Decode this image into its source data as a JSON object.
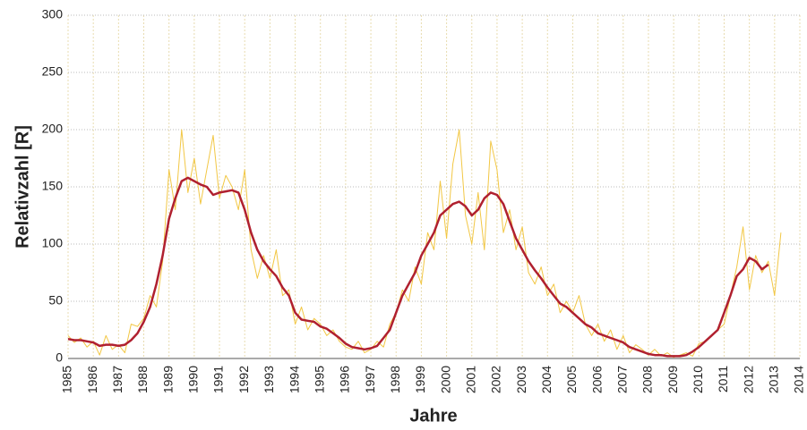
{
  "chart_data": {
    "type": "line",
    "y_label": "Relativzahl [R]",
    "x_label": "Jahre",
    "x": [
      1985,
      1985.25,
      1985.5,
      1985.75,
      1986,
      1986.25,
      1986.5,
      1986.75,
      1987,
      1987.25,
      1987.5,
      1987.75,
      1988,
      1988.25,
      1988.5,
      1988.75,
      1989,
      1989.25,
      1989.5,
      1989.75,
      1990,
      1990.25,
      1990.5,
      1990.75,
      1991,
      1991.25,
      1991.5,
      1991.75,
      1992,
      1992.25,
      1992.5,
      1992.75,
      1993,
      1993.25,
      1993.5,
      1993.75,
      1994,
      1994.25,
      1994.5,
      1994.75,
      1995,
      1995.25,
      1995.5,
      1995.75,
      1996,
      1996.25,
      1996.5,
      1996.75,
      1997,
      1997.25,
      1997.5,
      1997.75,
      1998,
      1998.25,
      1998.5,
      1998.75,
      1999,
      1999.25,
      1999.5,
      1999.75,
      2000,
      2000.25,
      2000.5,
      2000.75,
      2001,
      2001.25,
      2001.5,
      2001.75,
      2002,
      2002.25,
      2002.5,
      2002.75,
      2003,
      2003.25,
      2003.5,
      2003.75,
      2004,
      2004.25,
      2004.5,
      2004.75,
      2005,
      2005.25,
      2005.5,
      2005.75,
      2006,
      2006.25,
      2006.5,
      2006.75,
      2007,
      2007.25,
      2007.5,
      2007.75,
      2008,
      2008.25,
      2008.5,
      2008.75,
      2009,
      2009.25,
      2009.5,
      2009.75,
      2010,
      2010.25,
      2010.5,
      2010.75,
      2011,
      2011.25,
      2011.5,
      2011.75,
      2012,
      2012.25,
      2012.5,
      2012.75,
      2013,
      2013.25
    ],
    "series": [
      {
        "color": "#f2c744",
        "width": 1,
        "values": [
          20,
          14,
          18,
          10,
          15,
          3,
          20,
          8,
          12,
          5,
          30,
          28,
          35,
          55,
          45,
          85,
          165,
          130,
          200,
          145,
          175,
          135,
          165,
          195,
          140,
          160,
          150,
          130,
          165,
          95,
          70,
          90,
          70,
          95,
          55,
          60,
          30,
          45,
          25,
          35,
          30,
          20,
          25,
          15,
          10,
          8,
          15,
          5,
          8,
          15,
          10,
          30,
          40,
          60,
          50,
          80,
          65,
          110,
          95,
          155,
          105,
          170,
          200,
          125,
          100,
          145,
          95,
          190,
          165,
          110,
          130,
          95,
          115,
          75,
          65,
          80,
          55,
          65,
          40,
          50,
          40,
          55,
          30,
          20,
          30,
          15,
          25,
          8,
          20,
          5,
          12,
          8,
          3,
          8,
          2,
          5,
          1,
          3,
          5,
          2,
          13,
          15,
          20,
          25,
          30,
          55,
          80,
          115,
          60,
          90,
          75,
          85,
          55,
          110
        ]
      },
      {
        "color": "#b0202f",
        "width": 2.5,
        "values": [
          17,
          16,
          16,
          15,
          14,
          11,
          12,
          12,
          11,
          12,
          16,
          22,
          32,
          45,
          65,
          90,
          122,
          140,
          155,
          158,
          155,
          152,
          150,
          143,
          145,
          146,
          147,
          145,
          130,
          110,
          95,
          85,
          78,
          72,
          62,
          55,
          40,
          34,
          33,
          32,
          28,
          26,
          22,
          18,
          13,
          10,
          9,
          8,
          9,
          11,
          18,
          25,
          40,
          55,
          65,
          75,
          90,
          100,
          110,
          125,
          130,
          135,
          137,
          133,
          125,
          130,
          140,
          145,
          143,
          135,
          120,
          105,
          95,
          85,
          77,
          70,
          62,
          55,
          48,
          45,
          40,
          35,
          30,
          27,
          22,
          20,
          18,
          16,
          14,
          10,
          8,
          6,
          4,
          3,
          3,
          2,
          2,
          2,
          3,
          6,
          10,
          15,
          20,
          25,
          40,
          55,
          72,
          78,
          88,
          85,
          78,
          82,
          null,
          null
        ]
      }
    ],
    "xlim": [
      1985,
      2014
    ],
    "xticks": [
      1985,
      1986,
      1987,
      1988,
      1989,
      1990,
      1991,
      1992,
      1993,
      1994,
      1995,
      1996,
      1997,
      1998,
      1999,
      2000,
      2001,
      2002,
      2003,
      2004,
      2005,
      2006,
      2007,
      2008,
      2009,
      2010,
      2011,
      2012,
      2013,
      2014
    ],
    "ylim": [
      0,
      300
    ],
    "yticks": [
      0,
      50,
      100,
      150,
      200,
      250,
      300
    ],
    "grid": true
  }
}
